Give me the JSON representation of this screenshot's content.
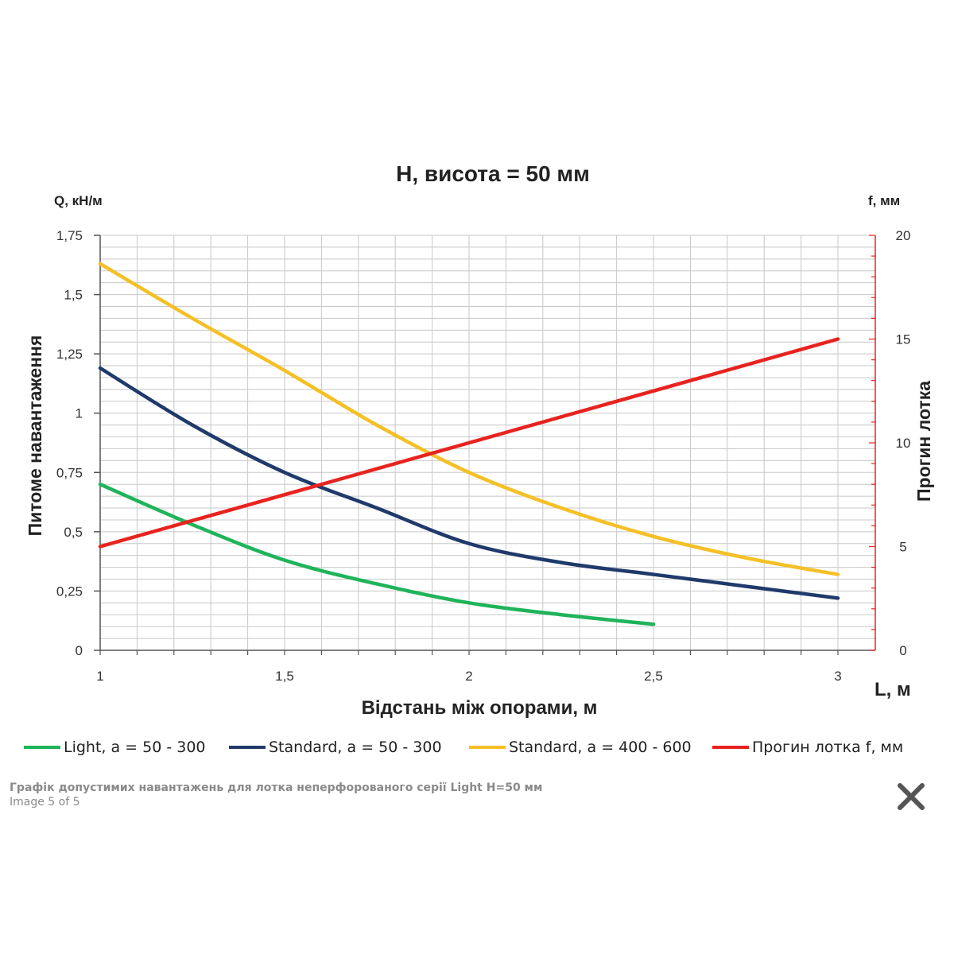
{
  "caption": {
    "title": "Графік допустимих навантажень для лотка неперфорованого серії Light H=50 мм",
    "counter": "Image 5 of 5"
  },
  "close_icon": "close-icon",
  "chart_data": {
    "type": "line",
    "title": "H, висота = 50 мм",
    "xlabel": "Відстань між опорами, м",
    "x_unit_label": "L, м",
    "ylabel_left": "Питоме навантаження",
    "y_unit_left": "Q, кН/м",
    "ylabel_right": "Прогин лотка",
    "y_unit_right": "f, мм",
    "xlim": [
      1,
      3
    ],
    "ylim_left": [
      0,
      1.75
    ],
    "ylim_right": [
      0,
      20
    ],
    "x_ticks": [
      1,
      1.5,
      2,
      2.5,
      3
    ],
    "x_tick_labels": [
      "1",
      "1,5",
      "2",
      "2,5",
      "3"
    ],
    "y_left_ticks": [
      0,
      0.25,
      0.5,
      0.75,
      1,
      1.25,
      1.5,
      1.75
    ],
    "y_left_tick_labels": [
      "0",
      "0,25",
      "0,5",
      "0,75",
      "1",
      "1,25",
      "1,5",
      "1,75"
    ],
    "y_right_ticks": [
      0,
      5,
      10,
      15,
      20
    ],
    "y_right_tick_labels": [
      "0",
      "5",
      "10",
      "15",
      "20"
    ],
    "grid": true,
    "legend_position": "bottom",
    "series": [
      {
        "name": "Light,  a = 50 - 300",
        "axis": "left",
        "color": "#1fb45a",
        "x": [
          1,
          1.25,
          1.5,
          1.75,
          2,
          2.25,
          2.5
        ],
        "y": [
          0.7,
          0.53,
          0.38,
          0.28,
          0.2,
          0.15,
          0.11
        ]
      },
      {
        "name": "Standard,  a = 50 - 300",
        "axis": "left",
        "color": "#1f3a6b",
        "x": [
          1,
          1.25,
          1.5,
          1.75,
          2,
          2.25,
          2.5,
          2.75,
          3
        ],
        "y": [
          1.19,
          0.95,
          0.75,
          0.6,
          0.45,
          0.37,
          0.32,
          0.27,
          0.22
        ]
      },
      {
        "name": "Standard,  a = 400 - 600",
        "axis": "left",
        "color": "#f5c026",
        "x": [
          1,
          1.25,
          1.5,
          1.75,
          2,
          2.25,
          2.5,
          2.75,
          3
        ],
        "y": [
          1.63,
          1.4,
          1.18,
          0.95,
          0.75,
          0.6,
          0.48,
          0.39,
          0.32
        ]
      },
      {
        "name": "Прогин лотка f, мм",
        "axis": "right",
        "color": "#e8231f",
        "x": [
          1,
          3
        ],
        "y": [
          5,
          15
        ]
      }
    ]
  }
}
